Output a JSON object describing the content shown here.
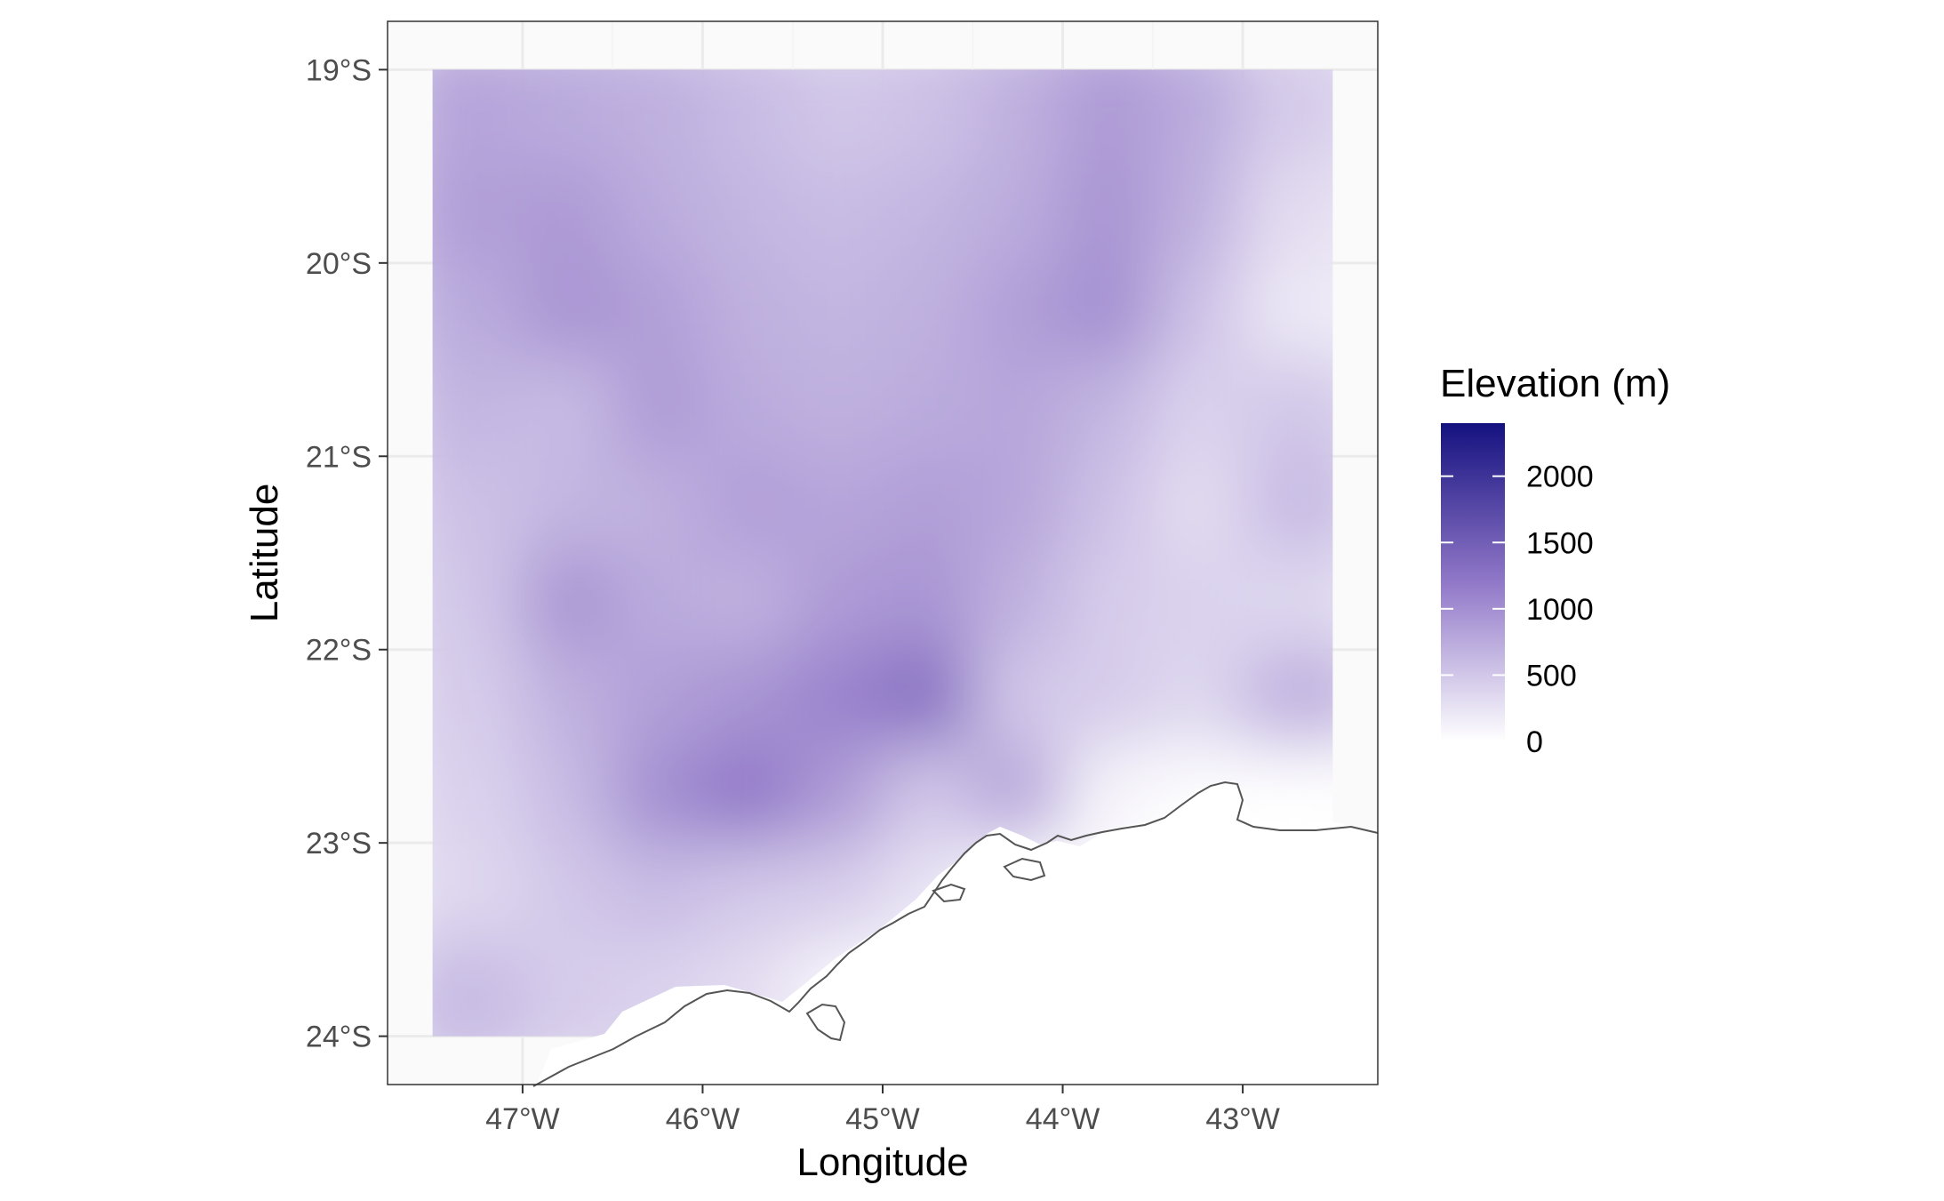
{
  "chart_data": {
    "type": "heatmap",
    "title": "",
    "xlabel": "Longitude",
    "ylabel": "Latitude",
    "x_ticks": [
      {
        "value": -47,
        "label": "47°W"
      },
      {
        "value": -46,
        "label": "46°W"
      },
      {
        "value": -45,
        "label": "45°W"
      },
      {
        "value": -44,
        "label": "44°W"
      },
      {
        "value": -43,
        "label": "43°W"
      }
    ],
    "y_ticks": [
      {
        "value": -19,
        "label": "19°S"
      },
      {
        "value": -20,
        "label": "20°S"
      },
      {
        "value": -21,
        "label": "21°S"
      },
      {
        "value": -22,
        "label": "22°S"
      },
      {
        "value": -23,
        "label": "23°S"
      },
      {
        "value": -24,
        "label": "24°S"
      }
    ],
    "xlim": [
      -47.75,
      -42.25
    ],
    "ylim": [
      -24.25,
      -18.75
    ],
    "raster_extent": {
      "lon": [
        -47.5,
        -42.5
      ],
      "lat": [
        -24.0,
        -19.0
      ]
    },
    "legend": {
      "title": "Elevation (m)",
      "position": "right",
      "breaks": [
        {
          "value": 2000,
          "label": "2000"
        },
        {
          "value": 1500,
          "label": "1500"
        },
        {
          "value": 1000,
          "label": "1000"
        },
        {
          "value": 500,
          "label": "500"
        },
        {
          "value": 0,
          "label": "0"
        }
      ],
      "range": [
        0,
        2400
      ],
      "color_low": "#ffffff",
      "color_high": "#14117f"
    },
    "elevation_grid": {
      "lon": [
        -47.25,
        -46.75,
        -46.25,
        -45.75,
        -45.25,
        -44.75,
        -44.25,
        -43.75,
        -43.25,
        -42.75
      ],
      "lat": [
        -19.25,
        -19.75,
        -20.25,
        -20.75,
        -21.25,
        -21.75,
        -22.25,
        -22.75,
        -23.25,
        -23.75
      ],
      "values": [
        [
          800,
          750,
          700,
          600,
          500,
          550,
          700,
          900,
          750,
          450
        ],
        [
          850,
          900,
          750,
          650,
          600,
          650,
          750,
          950,
          700,
          300
        ],
        [
          750,
          950,
          850,
          700,
          650,
          700,
          850,
          1000,
          550,
          200
        ],
        [
          650,
          600,
          900,
          750,
          700,
          750,
          800,
          650,
          400,
          500
        ],
        [
          550,
          650,
          700,
          850,
          800,
          850,
          800,
          550,
          300,
          600
        ],
        [
          500,
          950,
          750,
          700,
          900,
          950,
          700,
          450,
          400,
          350
        ],
        [
          450,
          700,
          850,
          950,
          1100,
          1300,
          500,
          450,
          350,
          700
        ],
        [
          400,
          600,
          1000,
          1200,
          900,
          500,
          800,
          100,
          20,
          0
        ],
        [
          350,
          500,
          600,
          500,
          450,
          250,
          0,
          0,
          0,
          0
        ],
        [
          600,
          450,
          400,
          300,
          80,
          0,
          0,
          0,
          0,
          0
        ]
      ]
    },
    "coastline_color": "#555555",
    "panel_background": "#fafafa",
    "grid_color": "#ebebeb",
    "grid": true
  }
}
